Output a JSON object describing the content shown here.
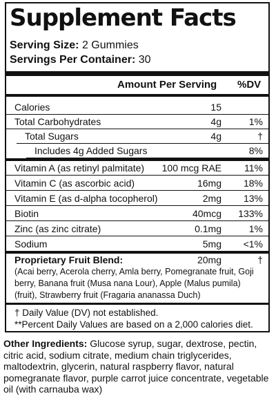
{
  "title": "Supplement Facts",
  "serving_size": {
    "label": "Serving Size:",
    "value": "2 Gummies"
  },
  "servings_per_container": {
    "label": "Servings Per Container:",
    "value": "30"
  },
  "header": {
    "amount": "Amount Per Serving",
    "dv": "%DV"
  },
  "rows": [
    {
      "name": "Calories",
      "amount": "15",
      "dv": ""
    },
    {
      "name": "Total Carbohydrates",
      "amount": "4g",
      "dv": "1%"
    },
    {
      "name": "Total Sugars",
      "amount": "4g",
      "dv": "†"
    },
    {
      "name": "Includes 4g Added Sugars",
      "amount": "",
      "dv": "8%"
    },
    {
      "name": "Vitamin A (as retinyl palmitate)",
      "amount": "100 mcg RAE",
      "dv": "11%"
    },
    {
      "name": "Vitamin C (as ascorbic acid)",
      "amount": "16mg",
      "dv": "18%"
    },
    {
      "name": "Vitamin E (as d-alpha tocopherol)",
      "amount": "2mg",
      "dv": "13%"
    },
    {
      "name": "Biotin",
      "amount": "40mcg",
      "dv": "133%"
    },
    {
      "name": "Zinc (as zinc citrate)",
      "amount": "0.1mg",
      "dv": "1%"
    },
    {
      "name": "Sodium",
      "amount": "5mg",
      "dv": "<1%"
    }
  ],
  "blend": {
    "name": "Proprietary Fruit Blend:",
    "amount": "20mg",
    "dv": "†",
    "description": "(Acai berry, Acerola cherry, Amla berry, Pomegranate fruit, Goji berry, Banana fruit (Musa nana Lour), Apple (Malus pumila) (fruit), Strawberry fruit (Fragaria ananassa Duch)"
  },
  "footnotes": {
    "dagger": "† Daily Value (DV) not established.",
    "percent": "**Percent Daily Values are based on a 2,000 calories diet."
  },
  "other_ingredients": {
    "label": "Other Ingredients:",
    "text": "Glucose syrup, sugar, dextrose, pectin, citric acid, sodium citrate, medium chain triglycerides, maltodextrin, glycerin, natural raspberry flavor, natural pomegranate flavor, purple carrot juice concentrate, vegetable oil (with carnauba wax)"
  }
}
